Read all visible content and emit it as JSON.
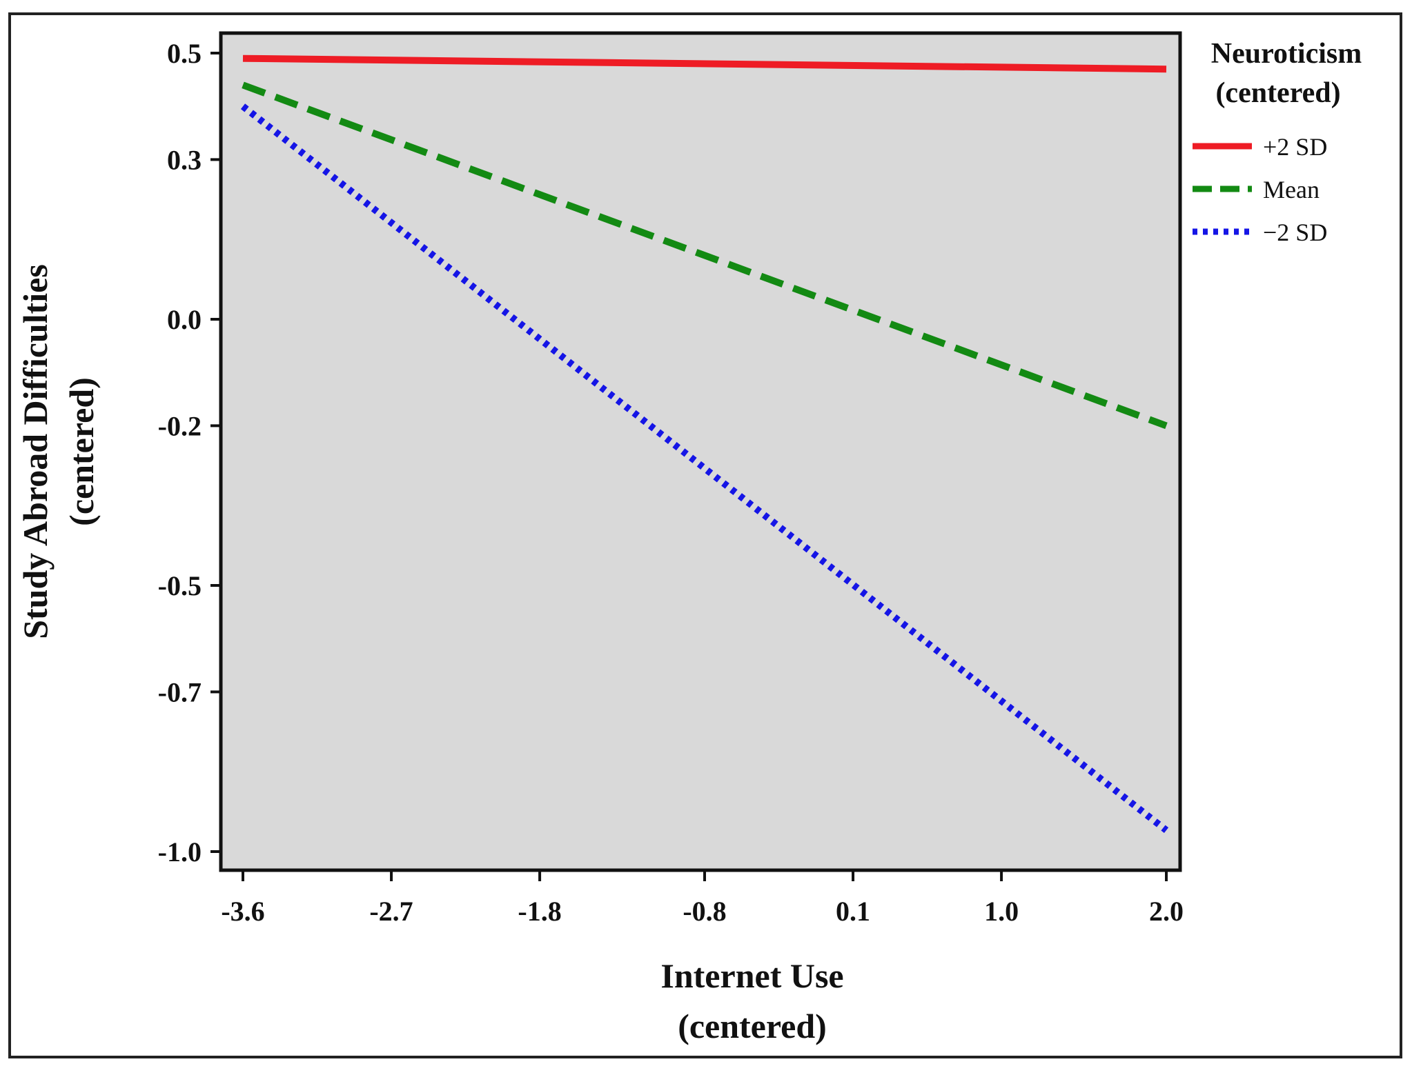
{
  "chart_data": {
    "type": "line",
    "title": "",
    "xlabel": [
      "Internet Use",
      "(centered)"
    ],
    "ylabel": [
      "Study Abroad Difficulties",
      "(centered)"
    ],
    "x_ticks": [
      "-3.6",
      "-2.7",
      "-1.8",
      "-0.8",
      "0.1",
      "1.0",
      "2.0"
    ],
    "y_ticks": [
      "0.5",
      "0.3",
      "0.0",
      "-0.2",
      "-0.5",
      "-0.7",
      "-1.0"
    ],
    "xlim": [
      -3.6,
      2.0
    ],
    "ylim": [
      -1.0,
      0.5
    ],
    "grid": false,
    "background": "#d9d9d9",
    "legend": {
      "title": [
        "Neuroticism",
        "(centered)"
      ],
      "placement": "right"
    },
    "series": [
      {
        "name": "+2 SD",
        "color": "#ee1c25",
        "style": "solid",
        "x": [
          -3.6,
          2.0
        ],
        "y": [
          0.49,
          0.47
        ]
      },
      {
        "name": "Mean",
        "color": "#138a13",
        "style": "dashed",
        "x": [
          -3.6,
          2.0
        ],
        "y": [
          0.44,
          -0.2
        ]
      },
      {
        "name": "−2 SD",
        "color": "#1515e6",
        "style": "dotted",
        "x": [
          -3.6,
          2.0
        ],
        "y": [
          0.4,
          -0.96
        ]
      }
    ]
  }
}
